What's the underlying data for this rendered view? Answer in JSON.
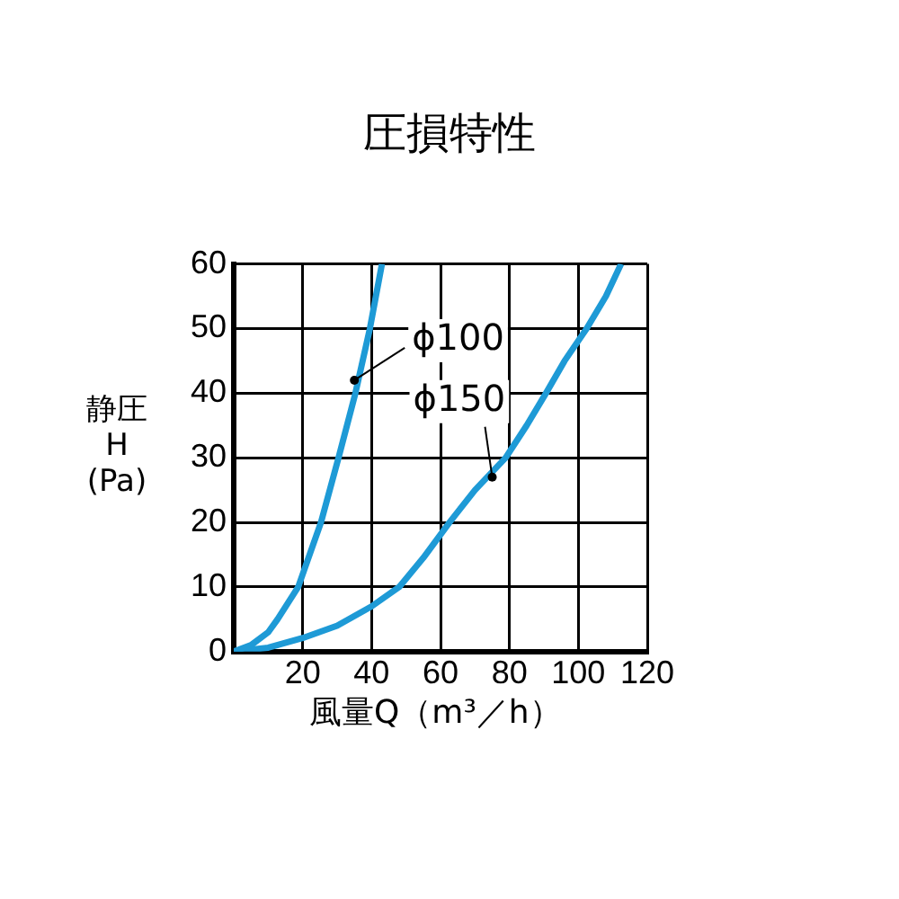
{
  "chart_data": {
    "type": "line",
    "title": "圧損特性",
    "xlabel": "風量Q（m³／h）",
    "ylabel": "静圧 H (Pa)",
    "xlim": [
      0,
      120
    ],
    "xticks": [
      {
        "value": 0,
        "label": null
      },
      20,
      40,
      60,
      80,
      100,
      120
    ],
    "ylim": [
      0,
      60
    ],
    "yticks": [
      0,
      10,
      20,
      30,
      40,
      50,
      60
    ],
    "grid": true,
    "legend": false,
    "marker": "none",
    "line_style": "solid",
    "series": [
      {
        "color": "#1e9ad6",
        "x": [
          0,
          5,
          10,
          12.7,
          18.7,
          25.3,
          30.4,
          35.3,
          39.5,
          43
        ],
        "values": [
          0,
          1,
          3,
          5,
          10,
          20,
          30,
          40,
          50,
          60
        ]
      },
      {
        "color": "#1e9ad6",
        "x": [
          0,
          10,
          20,
          30,
          40,
          48,
          55,
          62.6,
          70,
          78.9,
          85,
          90.6,
          96,
          102.4,
          108,
          112.4
        ],
        "values": [
          0,
          0.6,
          2.1,
          4,
          7,
          10,
          14.5,
          20,
          25,
          30,
          35,
          40,
          45,
          50,
          55,
          60
        ]
      }
    ],
    "annotations": [
      {
        "text": "ϕ100",
        "x": 35,
        "y": 42
      },
      {
        "text": "ϕ150",
        "x": 75,
        "y": 27
      }
    ]
  }
}
